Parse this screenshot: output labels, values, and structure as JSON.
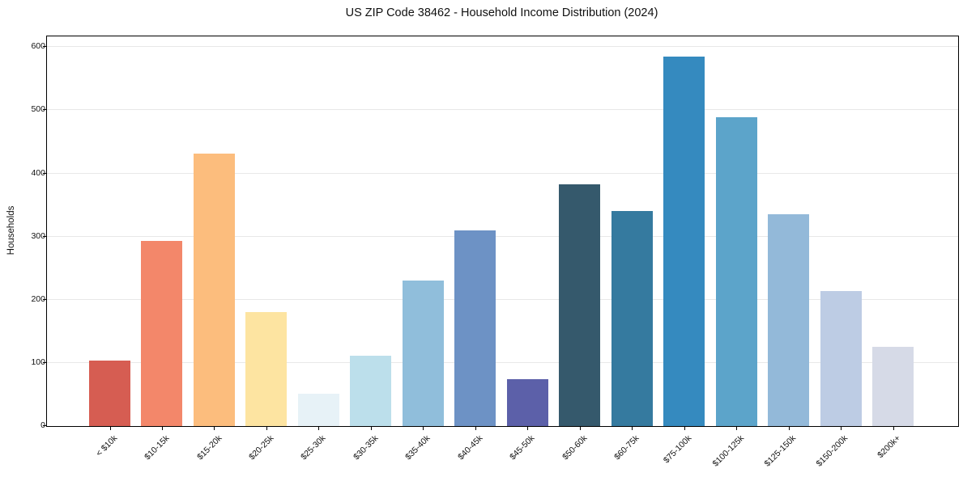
{
  "figure": {
    "title": "US ZIP Code 38462 - Household Income Distribution (2024)",
    "ylabel": "Households"
  },
  "chart_data": {
    "type": "bar",
    "title": "US ZIP Code 38462 - Household Income Distribution (2024)",
    "xlabel": "",
    "ylabel": "Households",
    "categories": [
      "< $10k",
      "$10-15k",
      "$15-20k",
      "$20-25k",
      "$25-30k",
      "$30-35k",
      "$35-40k",
      "$40-45k",
      "$45-50k",
      "$50-60k",
      "$60-75k",
      "$75-100k",
      "$100-125k",
      "$125-150k",
      "$150-200k",
      "$200k+"
    ],
    "values": [
      104,
      293,
      431,
      181,
      51,
      111,
      231,
      310,
      74,
      383,
      340,
      585,
      489,
      336,
      214,
      126
    ],
    "bar_colors": [
      "#d65d52",
      "#f3876a",
      "#fcbd7d",
      "#fde4a1",
      "#e7f2f7",
      "#bcdfeb",
      "#90bedb",
      "#6d92c5",
      "#5c60a9",
      "#35596c",
      "#357a9f",
      "#358abf",
      "#5ca4ca",
      "#93b9d9",
      "#bdcce4",
      "#d6dae7"
    ],
    "yticks": [
      0,
      100,
      200,
      300,
      400,
      500,
      600
    ],
    "ylim": [
      0,
      617
    ],
    "grid": "horizontal-only",
    "gridline_color": "#e8e8e8",
    "legend": "none",
    "x_tick_label_rotation_deg": 45
  }
}
